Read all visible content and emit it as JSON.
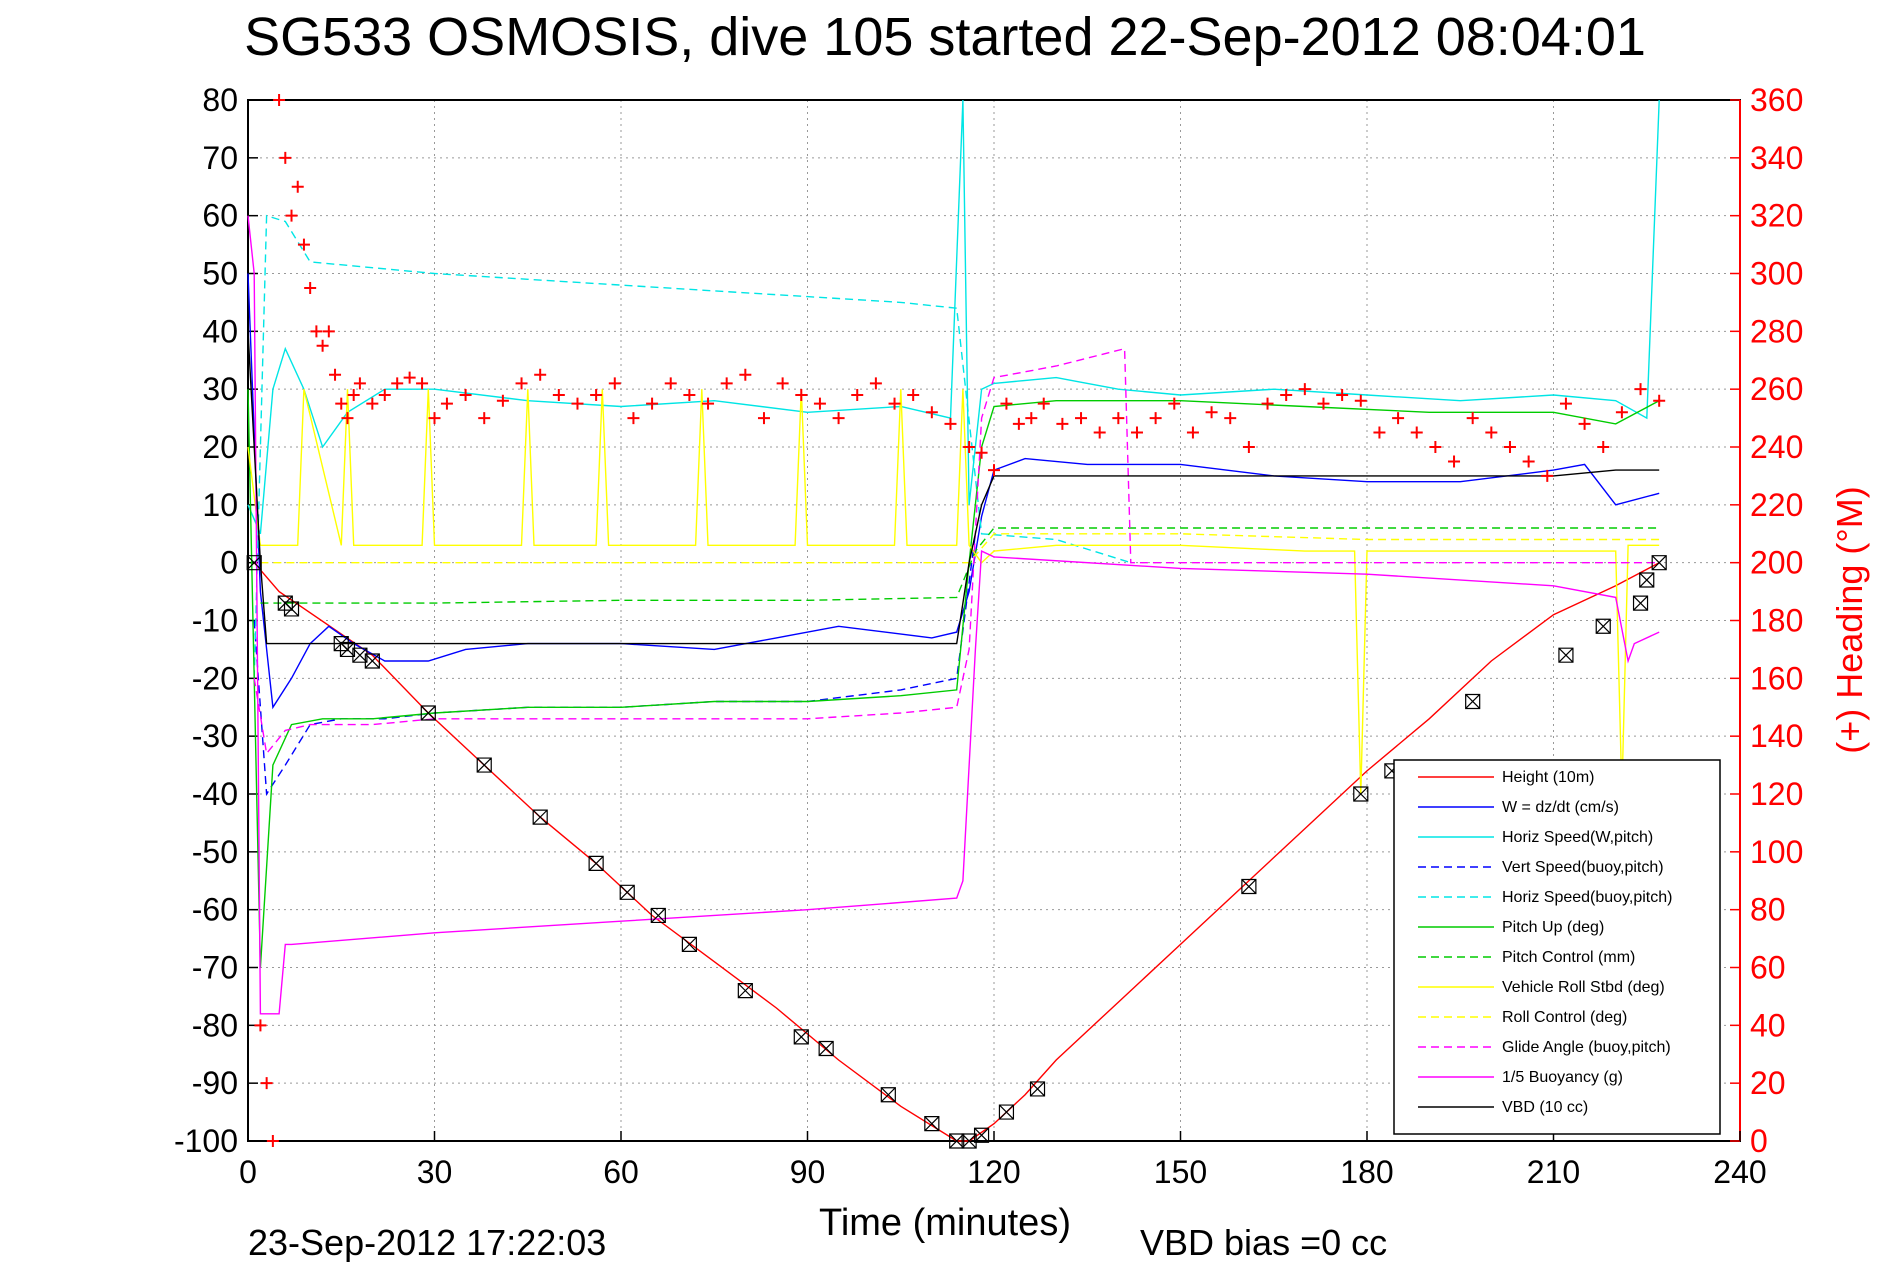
{
  "chart_data": {
    "type": "line",
    "title": "SG533 OSMOSIS, dive 105 started 22-Sep-2012 08:04:01",
    "xlabel": "Time (minutes)",
    "ylabel_right": "(+) Heading (°M)",
    "footer_left": "23-Sep-2012 17:22:03",
    "footer_right": "VBD bias =0 cc",
    "xlim": [
      0,
      240
    ],
    "ylim": [
      -100,
      80
    ],
    "ylim_right": [
      0,
      360
    ],
    "xticks": [
      0,
      30,
      60,
      90,
      120,
      150,
      180,
      210,
      240
    ],
    "yticks": [
      -100,
      -90,
      -80,
      -70,
      -60,
      -50,
      -40,
      -30,
      -20,
      -10,
      0,
      10,
      20,
      30,
      40,
      50,
      60,
      70,
      80
    ],
    "yticks_right": [
      0,
      20,
      40,
      60,
      80,
      100,
      120,
      140,
      160,
      180,
      200,
      220,
      240,
      260,
      280,
      300,
      320,
      340,
      360
    ],
    "grid": true,
    "legend_position": "bottom-right",
    "series": [
      {
        "name": "Height (10m)",
        "color": "#ff0000",
        "style": "solid",
        "x": [
          1,
          5,
          20,
          29,
          38,
          47,
          56,
          65,
          75,
          85,
          95,
          105,
          114,
          116,
          120,
          125,
          130,
          140,
          150,
          160,
          170,
          180,
          190,
          200,
          210,
          220,
          227
        ],
        "y": [
          0,
          -5,
          -16,
          -26,
          -35,
          -44,
          -52,
          -61,
          -69,
          -77,
          -86,
          -94,
          -100,
          -100,
          -97,
          -92,
          -86,
          -76,
          -66,
          -56,
          -46,
          -36,
          -27,
          -17,
          -9,
          -4,
          0
        ]
      },
      {
        "name": "W = dz/dt (cm/s)",
        "color": "#0000ff",
        "style": "solid",
        "x": [
          0,
          2,
          4,
          7,
          10,
          13,
          17,
          22,
          29,
          35,
          45,
          60,
          75,
          85,
          95,
          110,
          114,
          116,
          118,
          120,
          125,
          135,
          150,
          165,
          180,
          195,
          210,
          215,
          220,
          227
        ],
        "y": [
          50,
          -5,
          -25,
          -20,
          -14,
          -11,
          -14,
          -17,
          -17,
          -15,
          -14,
          -14,
          -15,
          -13,
          -11,
          -13,
          -12,
          -5,
          8,
          16,
          18,
          17,
          17,
          15,
          14,
          14,
          16,
          17,
          10,
          12
        ]
      },
      {
        "name": "Horiz Speed(W,pitch)",
        "color": "#00e5e5",
        "style": "solid",
        "x": [
          0,
          2,
          4,
          6,
          9,
          12,
          16,
          22,
          30,
          45,
          60,
          75,
          90,
          105,
          113,
          115,
          116,
          118,
          120,
          130,
          140,
          150,
          165,
          180,
          195,
          210,
          220,
          225,
          227
        ],
        "y": [
          10,
          5,
          30,
          37,
          30,
          20,
          26,
          30,
          30,
          28,
          27,
          28,
          26,
          27,
          25,
          80,
          10,
          30,
          31,
          32,
          30,
          29,
          30,
          29,
          28,
          29,
          28,
          25,
          80
        ]
      },
      {
        "name": "Vert Speed(buoy,pitch)",
        "color": "#0000ff",
        "style": "dashed",
        "x": [
          1,
          3,
          6,
          10,
          15,
          22,
          30,
          45,
          60,
          75,
          90,
          105,
          114,
          117
        ],
        "y": [
          -10,
          -40,
          -35,
          -28,
          -27,
          -27,
          -26,
          -25,
          -25,
          -24,
          -24,
          -22,
          -20,
          5
        ]
      },
      {
        "name": "Horiz Speed(buoy,pitch)",
        "color": "#00e5e5",
        "style": "dashed",
        "x": [
          1,
          3,
          6,
          10,
          20,
          30,
          45,
          60,
          75,
          90,
          105,
          114,
          118,
          130,
          142
        ],
        "y": [
          -20,
          60,
          59,
          52,
          51,
          50,
          49,
          48,
          47,
          46,
          45,
          44,
          5,
          4,
          0
        ]
      },
      {
        "name": "Pitch Up (deg)",
        "color": "#00cc00",
        "style": "solid",
        "x": [
          0,
          2,
          4,
          7,
          12,
          20,
          30,
          45,
          60,
          75,
          90,
          105,
          114,
          116,
          118,
          120,
          130,
          150,
          170,
          190,
          210,
          220,
          227
        ],
        "y": [
          30,
          -70,
          -35,
          -28,
          -27,
          -27,
          -26,
          -25,
          -25,
          -24,
          -24,
          -23,
          -22,
          0,
          20,
          27,
          28,
          28,
          27,
          26,
          26,
          24,
          28
        ]
      },
      {
        "name": "Pitch Control (mm)",
        "color": "#00cc00",
        "style": "dashed",
        "x": [
          2,
          4,
          30,
          60,
          90,
          114,
          117,
          120,
          150,
          180,
          210,
          227
        ],
        "y": [
          -7,
          -7,
          -7,
          -6.5,
          -6.5,
          -6,
          2,
          6,
          6,
          6,
          6,
          6
        ]
      },
      {
        "name": "Vehicle Roll Stbd (deg)",
        "color": "#ffff00",
        "style": "solid",
        "x": [
          0,
          2,
          5,
          8,
          9,
          15,
          16,
          17,
          28,
          29,
          30,
          44,
          45,
          46,
          56,
          57,
          58,
          72,
          73,
          74,
          88,
          89,
          90,
          104,
          105,
          106,
          114,
          115,
          116,
          118,
          120,
          130,
          150,
          170,
          178,
          179,
          180,
          200,
          210,
          220,
          221,
          222,
          227
        ],
        "y": [
          20,
          3,
          3,
          3,
          30,
          3,
          30,
          3,
          3,
          30,
          3,
          3,
          30,
          3,
          3,
          30,
          3,
          3,
          30,
          3,
          3,
          30,
          3,
          3,
          30,
          3,
          3,
          30,
          3,
          0,
          2,
          3,
          3,
          2,
          2,
          -40,
          2,
          2,
          2,
          2,
          -40,
          3,
          3
        ]
      },
      {
        "name": "Roll Control (deg)",
        "color": "#ffff00",
        "style": "dashed",
        "x": [
          2,
          30,
          60,
          90,
          114,
          116,
          120,
          150,
          180,
          210,
          227
        ],
        "y": [
          0,
          0,
          0,
          0,
          0,
          0,
          5,
          5,
          4,
          4,
          4
        ]
      },
      {
        "name": "Glide Angle (buoy,pitch)",
        "color": "#ff00ff",
        "style": "dashed",
        "x": [
          1,
          3,
          6,
          10,
          20,
          30,
          45,
          60,
          75,
          90,
          105,
          114,
          116,
          118,
          120,
          130,
          141,
          142,
          150,
          180,
          210,
          227
        ],
        "y": [
          -20,
          -33,
          -29,
          -28,
          -28,
          -27,
          -27,
          -27,
          -27,
          -27,
          -26,
          -25,
          -15,
          25,
          32,
          34,
          37,
          0,
          0,
          0,
          0,
          0
        ]
      },
      {
        "name": "1/5 Buoyancy (g)",
        "color": "#ff00ff",
        "style": "solid",
        "x": [
          0,
          1,
          2,
          5,
          6,
          7,
          30,
          60,
          90,
          114,
          115,
          117,
          118,
          120,
          150,
          180,
          210,
          220,
          222,
          223,
          227
        ],
        "y": [
          60,
          50,
          -78,
          -78,
          -66,
          -66,
          -64,
          -62,
          -60,
          -58,
          -55,
          -15,
          2,
          1,
          -1,
          -2,
          -4,
          -6,
          -17,
          -14,
          -12
        ]
      },
      {
        "name": "VBD (10 cc)",
        "color": "#000000",
        "style": "solid",
        "x": [
          0,
          2,
          3,
          30,
          60,
          90,
          114,
          116,
          118,
          120,
          150,
          180,
          210,
          220,
          227
        ],
        "y": [
          40,
          0,
          -14,
          -14,
          -14,
          -14,
          -14,
          0,
          10,
          15,
          15,
          15,
          15,
          16,
          16
        ]
      }
    ],
    "heading_series": {
      "name": "Heading",
      "color": "#ff0000",
      "marker": "+",
      "axis": "right",
      "x": [
        2,
        3,
        4,
        5,
        6,
        7,
        8,
        9,
        10,
        11,
        12,
        13,
        14,
        15,
        16,
        17,
        18,
        20,
        22,
        24,
        26,
        28,
        30,
        32,
        35,
        38,
        41,
        44,
        47,
        50,
        53,
        56,
        59,
        62,
        65,
        68,
        71,
        74,
        77,
        80,
        83,
        86,
        89,
        92,
        95,
        98,
        101,
        104,
        107,
        110,
        113,
        116,
        118,
        120,
        122,
        124,
        126,
        128,
        131,
        134,
        137,
        140,
        143,
        146,
        149,
        152,
        155,
        158,
        161,
        164,
        167,
        170,
        173,
        176,
        179,
        182,
        185,
        188,
        191,
        194,
        197,
        200,
        203,
        206,
        209,
        212,
        215,
        218,
        221,
        224,
        227
      ],
      "y": [
        40,
        20,
        0,
        360,
        340,
        320,
        330,
        310,
        295,
        280,
        275,
        280,
        265,
        255,
        250,
        258,
        262,
        255,
        258,
        262,
        264,
        262,
        250,
        255,
        258,
        250,
        256,
        262,
        265,
        258,
        255,
        258,
        262,
        250,
        255,
        262,
        258,
        255,
        262,
        265,
        250,
        262,
        258,
        255,
        250,
        258,
        262,
        255,
        258,
        252,
        248,
        240,
        238,
        232,
        255,
        248,
        250,
        255,
        248,
        250,
        245,
        250,
        245,
        250,
        255,
        245,
        252,
        250,
        240,
        255,
        258,
        260,
        255,
        258,
        256,
        245,
        250,
        245,
        240,
        235,
        250,
        245,
        240,
        235,
        230,
        255,
        248,
        240,
        252,
        260,
        256
      ]
    },
    "height_markers": {
      "marker": "boxed-x",
      "color": "#000000",
      "x": [
        1,
        6,
        7,
        15,
        16,
        18,
        20,
        29,
        38,
        47,
        56,
        61,
        66,
        71,
        80,
        89,
        93,
        103,
        110,
        114,
        116,
        118,
        122,
        127,
        161,
        179,
        184,
        197,
        212,
        218,
        224,
        225,
        227
      ],
      "y": [
        0,
        -7,
        -8,
        -14,
        -15,
        -16,
        -17,
        -26,
        -35,
        -44,
        -52,
        -57,
        -61,
        -66,
        -74,
        -82,
        -84,
        -92,
        -97,
        -100,
        -100,
        -99,
        -95,
        -91,
        -56,
        -40,
        -36,
        -24,
        -16,
        -11,
        -7,
        -3,
        0
      ]
    }
  }
}
